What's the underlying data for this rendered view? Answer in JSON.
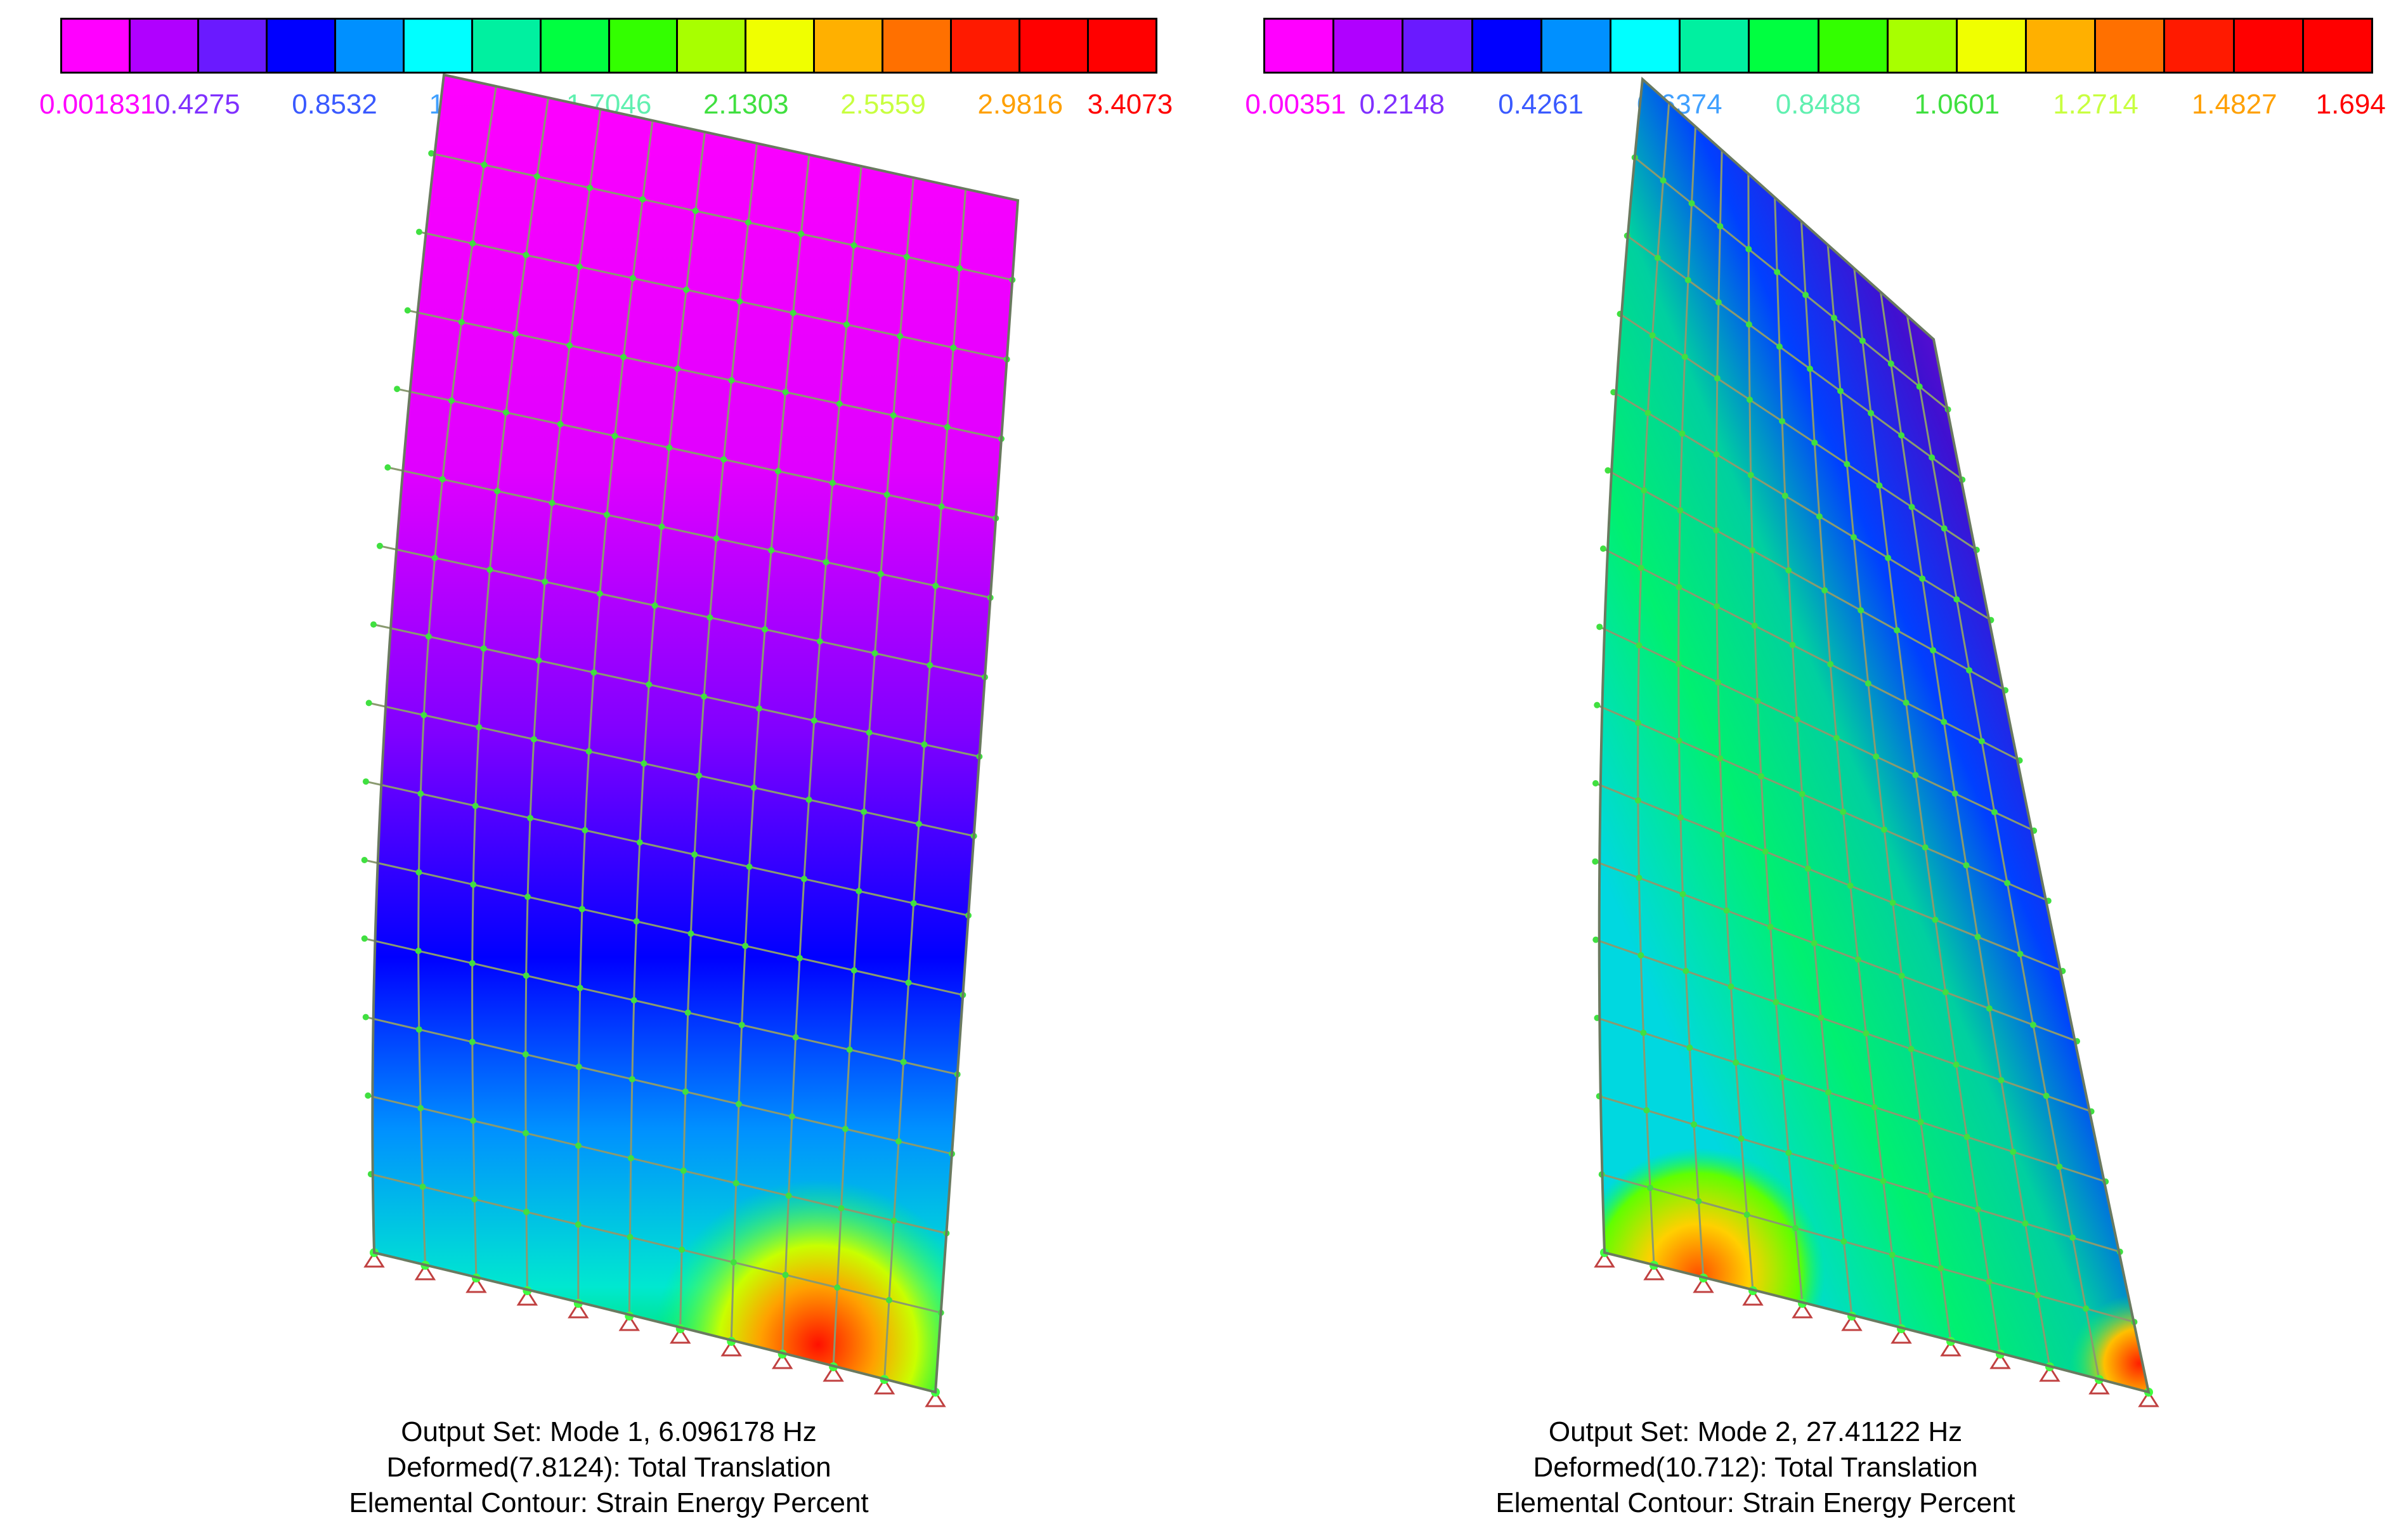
{
  "legend_colors": [
    "#ff00ff",
    "#b000ff",
    "#6a1aff",
    "#0000ff",
    "#0090ff",
    "#00ffff",
    "#00f0a0",
    "#00ff40",
    "#33ff00",
    "#a8ff00",
    "#f0ff00",
    "#ffb000",
    "#ff7000",
    "#ff1a00",
    "#ff0000",
    "#ff0000"
  ],
  "panels": [
    {
      "id": "left",
      "legend_ticks": [
        "0.001831",
        "0.4275",
        "0.8532",
        "1.2789",
        "1.7046",
        "2.1303",
        "2.5559",
        "2.9816",
        "3.4073"
      ],
      "tick_colors": [
        "#ff00ff",
        "#8030ff",
        "#3a5aff",
        "#40a0ff",
        "#60f0b0",
        "#40e040",
        "#c8ff40",
        "#ffa000",
        "#ff0000"
      ],
      "caption": {
        "line1": "Output Set: Mode 1, 6.096178 Hz",
        "line2": "Deformed(7.8124): Total Translation",
        "line3": "Elemental Contour: Strain Energy Percent"
      }
    },
    {
      "id": "right",
      "legend_ticks": [
        "0.00351",
        "0.2148",
        "0.4261",
        "0.6374",
        "0.8488",
        "1.0601",
        "1.2714",
        "1.4827",
        "1.694"
      ],
      "tick_colors": [
        "#ff00ff",
        "#8030ff",
        "#3a5aff",
        "#40a0ff",
        "#60f0b0",
        "#40e040",
        "#c8ff40",
        "#ffa000",
        "#ff0000"
      ],
      "caption": {
        "line1": "Output Set: Mode 2, 27.41122 Hz",
        "line2": "Deformed(10.712): Total Translation",
        "line3": "Elemental Contour: Strain Energy Percent"
      }
    }
  ]
}
